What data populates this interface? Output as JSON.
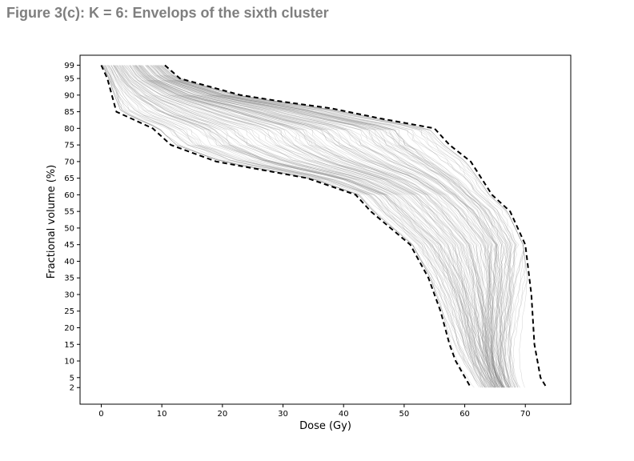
{
  "figure": {
    "title": "Figure 3(c): K = 6: Envelops of the sixth cluster"
  },
  "chart_data": {
    "type": "line",
    "xlabel": "Dose (Gy)",
    "ylabel": "Fractional volume (%)",
    "xlim": [
      -3.5,
      77.5
    ],
    "ylim": [
      -3,
      102
    ],
    "x_ticks": [
      0,
      10,
      20,
      30,
      40,
      50,
      60,
      70
    ],
    "y_ticks": [
      2,
      5,
      10,
      15,
      20,
      25,
      30,
      35,
      40,
      45,
      50,
      55,
      60,
      65,
      70,
      75,
      80,
      85,
      90,
      95,
      99
    ],
    "colors": {
      "envelope": "#000000",
      "curves": "#808080"
    },
    "envelope_lower": {
      "x": [
        0,
        0.5,
        1,
        2.5,
        8.5,
        11.5,
        19,
        34,
        42,
        44.5,
        51,
        54,
        56,
        57.5,
        58.5,
        61
      ],
      "y": [
        99,
        97,
        95,
        85,
        80,
        75,
        70,
        65,
        60,
        55,
        45,
        35,
        25,
        15,
        10,
        2
      ]
    },
    "envelope_upper": {
      "x": [
        10.5,
        13,
        23,
        30,
        38,
        46,
        55,
        57.5,
        61,
        64.5,
        67.5,
        70,
        71,
        71.5,
        72.5,
        73.5
      ],
      "y": [
        99,
        95,
        90,
        88,
        86,
        83,
        80,
        75,
        70,
        60,
        55,
        45,
        30,
        15,
        5,
        2
      ]
    },
    "cluster_curves_count": 150
  }
}
